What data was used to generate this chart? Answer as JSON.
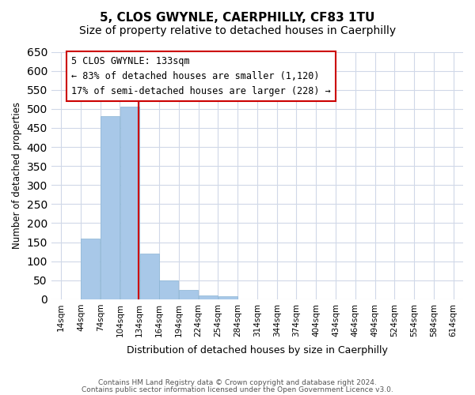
{
  "title": "5, CLOS GWYNLE, CAERPHILLY, CF83 1TU",
  "subtitle": "Size of property relative to detached houses in Caerphilly",
  "xlabel": "Distribution of detached houses by size in Caerphilly",
  "ylabel": "Number of detached properties",
  "bar_values": [
    0,
    160,
    480,
    505,
    120,
    50,
    25,
    10,
    8,
    0,
    0,
    0,
    0,
    0,
    0,
    0,
    0,
    0,
    0,
    0
  ],
  "bin_edges": [
    14,
    44,
    74,
    104,
    134,
    164,
    194,
    224,
    254,
    284,
    314,
    344,
    374,
    404,
    434,
    464,
    494,
    524,
    554,
    584,
    614
  ],
  "tick_labels": [
    "14sqm",
    "44sqm",
    "74sqm",
    "104sqm",
    "134sqm",
    "164sqm",
    "194sqm",
    "224sqm",
    "254sqm",
    "284sqm",
    "314sqm",
    "344sqm",
    "374sqm",
    "404sqm",
    "434sqm",
    "464sqm",
    "494sqm",
    "524sqm",
    "554sqm",
    "584sqm",
    "614sqm"
  ],
  "bar_color": "#a8c8e8",
  "bar_edge_color": "#8ab4d4",
  "vline_x": 133,
  "vline_color": "#cc0000",
  "ylim": [
    0,
    650
  ],
  "yticks": [
    0,
    50,
    100,
    150,
    200,
    250,
    300,
    350,
    400,
    450,
    500,
    550,
    600,
    650
  ],
  "annotation_title": "5 CLOS GWYNLE: 133sqm",
  "annotation_line1": "← 83% of detached houses are smaller (1,120)",
  "annotation_line2": "17% of semi-detached houses are larger (228) →",
  "annotation_box_color": "#ffffff",
  "annotation_box_edge": "#cc0000",
  "footer_line1": "Contains HM Land Registry data © Crown copyright and database right 2024.",
  "footer_line2": "Contains public sector information licensed under the Open Government Licence v3.0.",
  "background_color": "#ffffff",
  "grid_color": "#d0d8e8",
  "title_fontsize": 11,
  "subtitle_fontsize": 10
}
